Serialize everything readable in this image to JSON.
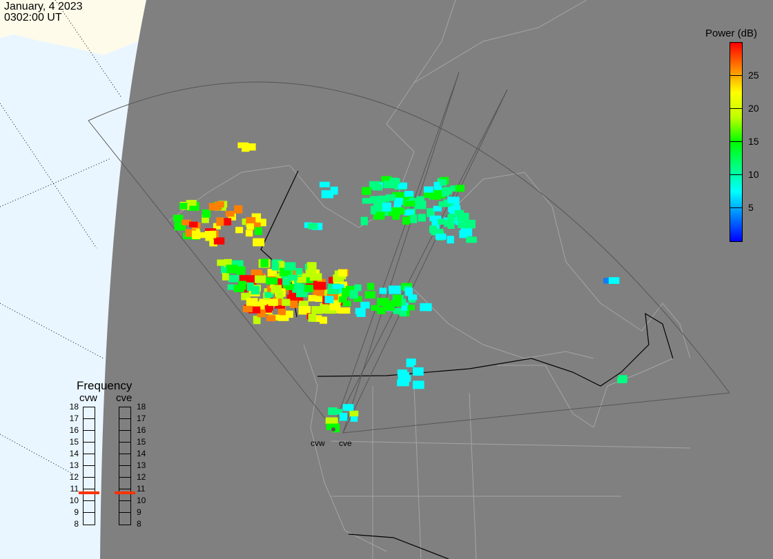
{
  "header": {
    "date": "January, 4 2023",
    "time": "0302:00 UT"
  },
  "colorbar": {
    "title": "Power (dB)",
    "ticks": [
      "25",
      "20",
      "15",
      "10",
      "5"
    ],
    "tick_values": [
      25,
      20,
      15,
      10,
      5
    ],
    "range": [
      0,
      30
    ],
    "colors": [
      "#0000ff",
      "#0080ff",
      "#00ffff",
      "#00ff80",
      "#00ff00",
      "#c0ff00",
      "#ffff00",
      "#ff8000",
      "#ff0000"
    ]
  },
  "frequency": {
    "title": "Frequency",
    "labels": [
      "18",
      "17",
      "16",
      "15",
      "14",
      "13",
      "12",
      "11",
      "10",
      "9",
      "8"
    ],
    "range": [
      8,
      18
    ],
    "radars": [
      {
        "name": "cvw",
        "value_mhz": 10.7
      },
      {
        "name": "cve",
        "value_mhz": 10.7
      }
    ],
    "marker_color": "#ff3300"
  },
  "sites": [
    {
      "name": "cvw"
    },
    {
      "name": "cve"
    }
  ],
  "colors": {
    "night": "#808080",
    "day_ocean": "#eaf6ff",
    "day_land": "#fefbea",
    "coast": "#a8a8a8",
    "fan": "#555555"
  }
}
